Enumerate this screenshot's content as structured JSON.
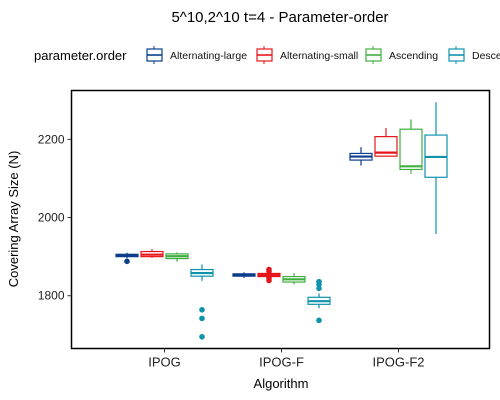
{
  "chart_data": {
    "type": "boxplot",
    "title": "5^10,2^10 t=4 - Parameter-order",
    "xlabel": "Algorithm",
    "ylabel": "Covering Array Size (N)",
    "legend_title": "parameter.order",
    "legend_position": "top",
    "categories": [
      "IPOG",
      "IPOG-F",
      "IPOG-F2"
    ],
    "ylim": [
      1665,
      2325
    ],
    "yticks": [
      1800,
      2000,
      2200
    ],
    "grid": false,
    "series": [
      {
        "name": "Alternating-large",
        "color": "#0a3d8a",
        "boxes": [
          {
            "category": "IPOG",
            "whisker_low": 1896,
            "q1": 1900,
            "median": 1903,
            "q3": 1906,
            "whisker_high": 1910,
            "outliers": [
              1888
            ]
          },
          {
            "category": "IPOG-F",
            "whisker_low": 1845,
            "q1": 1850,
            "median": 1853,
            "q3": 1856,
            "whisker_high": 1860,
            "outliers": []
          },
          {
            "category": "IPOG-F2",
            "whisker_low": 2133,
            "q1": 2147,
            "median": 2156,
            "q3": 2164,
            "whisker_high": 2180,
            "outliers": []
          }
        ]
      },
      {
        "name": "Alternating-small",
        "color": "#e5161b",
        "boxes": [
          {
            "category": "IPOG",
            "whisker_low": 1897,
            "q1": 1900,
            "median": 1905,
            "q3": 1913,
            "whisker_high": 1919,
            "outliers": []
          },
          {
            "category": "IPOG-F",
            "whisker_low": 1847,
            "q1": 1849,
            "median": 1853,
            "q3": 1857,
            "whisker_high": 1858,
            "outliers": [
              1839,
              1845,
              1862,
              1867
            ]
          },
          {
            "category": "IPOG-F2",
            "whisker_low": 2156,
            "q1": 2157,
            "median": 2166,
            "q3": 2207,
            "whisker_high": 2229,
            "outliers": []
          }
        ]
      },
      {
        "name": "Ascending",
        "color": "#3fad3f",
        "boxes": [
          {
            "category": "IPOG",
            "whisker_low": 1887,
            "q1": 1895,
            "median": 1901,
            "q3": 1907,
            "whisker_high": 1911,
            "outliers": []
          },
          {
            "category": "IPOG-F",
            "whisker_low": 1829,
            "q1": 1835,
            "median": 1842,
            "q3": 1849,
            "whisker_high": 1858,
            "outliers": []
          },
          {
            "category": "IPOG-F2",
            "whisker_low": 2112,
            "q1": 2123,
            "median": 2131,
            "q3": 2226,
            "whisker_high": 2251,
            "outliers": []
          }
        ]
      },
      {
        "name": "Descending",
        "color": "#0f93ad",
        "boxes": [
          {
            "category": "IPOG",
            "whisker_low": 1838,
            "q1": 1850,
            "median": 1858,
            "q3": 1867,
            "whisker_high": 1880,
            "outliers": [
              1695,
              1742,
              1764
            ]
          },
          {
            "category": "IPOG-F",
            "whisker_low": 1768,
            "q1": 1778,
            "median": 1786,
            "q3": 1796,
            "whisker_high": 1806,
            "outliers": [
              1737,
              1819,
              1829,
              1836
            ]
          },
          {
            "category": "IPOG-F2",
            "whisker_low": 1958,
            "q1": 2103,
            "median": 2155,
            "q3": 2211,
            "whisker_high": 2295,
            "outliers": []
          }
        ]
      }
    ]
  }
}
